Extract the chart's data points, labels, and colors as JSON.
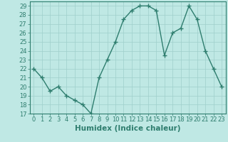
{
  "x": [
    0,
    1,
    2,
    3,
    4,
    5,
    6,
    7,
    8,
    9,
    10,
    11,
    12,
    13,
    14,
    15,
    16,
    17,
    18,
    19,
    20,
    21,
    22,
    23
  ],
  "y": [
    22,
    21,
    19.5,
    20,
    19,
    18.5,
    18,
    17,
    21,
    23,
    25,
    27.5,
    28.5,
    29,
    29,
    28.5,
    23.5,
    26,
    26.5,
    29,
    27.5,
    24,
    22,
    20
  ],
  "line_color": "#2e7d6e",
  "marker": "+",
  "marker_size": 4,
  "bg_color": "#bfe8e4",
  "grid_color": "#9fcfcb",
  "xlabel": "Humidex (Indice chaleur)",
  "xlim": [
    -0.5,
    23.5
  ],
  "ylim": [
    17,
    29.5
  ],
  "yticks": [
    17,
    18,
    19,
    20,
    21,
    22,
    23,
    24,
    25,
    26,
    27,
    28,
    29
  ],
  "xtick_labels": [
    "0",
    "1",
    "2",
    "3",
    "4",
    "5",
    "6",
    "7",
    "8",
    "9",
    "10",
    "11",
    "12",
    "13",
    "14",
    "15",
    "16",
    "17",
    "18",
    "19",
    "20",
    "21",
    "22",
    "23"
  ],
  "tick_fontsize": 6,
  "label_fontsize": 7.5
}
